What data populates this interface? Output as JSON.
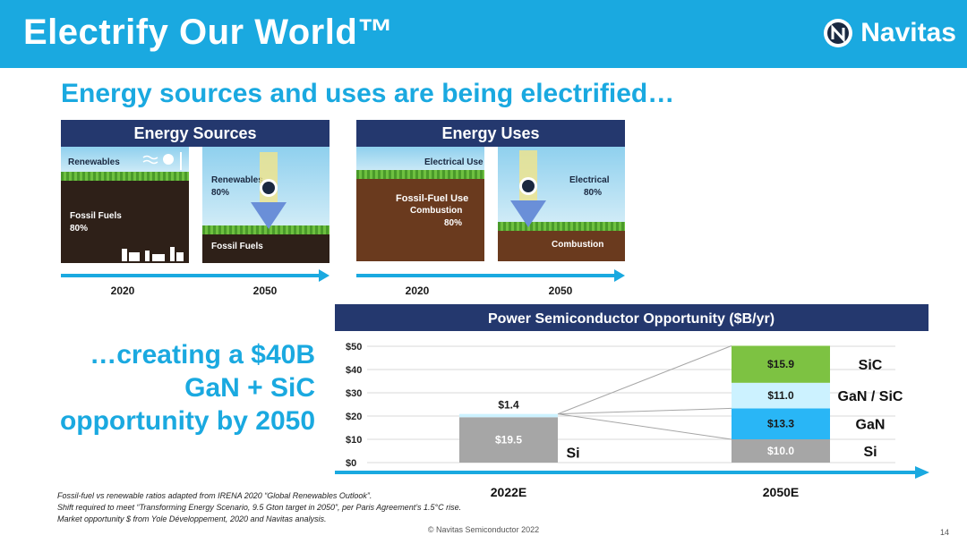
{
  "header": {
    "title": "Electrify Our World™",
    "brand": "Navitas"
  },
  "subtitle": "Energy sources and uses are being electrified…",
  "sources_panel": {
    "title": "Energy Sources",
    "left": {
      "renewables": "Renewables",
      "fossil": "Fossil Fuels",
      "fossil_pct": "80%"
    },
    "right": {
      "renewables": "Renewables",
      "renewables_pct": "80%",
      "fossil": "Fossil Fuels"
    },
    "years": [
      "2020",
      "2050"
    ]
  },
  "uses_panel": {
    "title": "Energy Uses",
    "left": {
      "electrical": "Electrical Use",
      "fossil_use": "Fossil-Fuel Use",
      "combustion": "Combustion",
      "combustion_pct": "80%"
    },
    "right": {
      "electrical": "Electrical",
      "electrical_pct": "80%",
      "combustion": "Combustion"
    },
    "years": [
      "2020",
      "2050"
    ]
  },
  "callout": [
    "…creating a $40B",
    "GaN + SiC",
    "opportunity by 2050"
  ],
  "colors": {
    "banner": "#1aa9e0",
    "navy": "#24386e",
    "si": "#a6a6a6",
    "gan": "#29b6f6",
    "gan_sic": "#ccf2ff",
    "sic": "#7dc242"
  },
  "chart_data": {
    "type": "bar",
    "stacked": true,
    "title": "Power Semiconductor Opportunity ($B/yr)",
    "categories": [
      "2022E",
      "2050E"
    ],
    "ylim": [
      0,
      50
    ],
    "y_ticks": [
      "$0",
      "$10",
      "$20",
      "$30",
      "$40",
      "$50"
    ],
    "grid": true,
    "series": [
      {
        "name": "Si",
        "values": [
          19.5,
          10.0
        ],
        "labels": [
          "$19.5",
          "$10.0"
        ],
        "color": "#a6a6a6"
      },
      {
        "name": "GaN",
        "values": [
          0,
          13.3
        ],
        "labels": [
          "",
          "$13.3"
        ],
        "color": "#29b6f6"
      },
      {
        "name": "GaN / SiC",
        "values": [
          1.4,
          11.0
        ],
        "labels": [
          "$1.4",
          "$11.0"
        ],
        "color": "#ccf2ff"
      },
      {
        "name": "SiC",
        "values": [
          0,
          15.9
        ],
        "labels": [
          "",
          "$15.9"
        ],
        "color": "#7dc242"
      }
    ]
  },
  "footnotes": [
    "Fossil-fuel vs renewable ratios adapted from IRENA 2020 “Global Renewables Outlook”.",
    "Shift required to meet “Transforming Energy Scenario, 9.5 Gton target in 2050”, per Paris Agreement’s 1.5°C rise.",
    "Market opportunity $ from Yole Développement, 2020 and Navitas analysis."
  ],
  "footer": "© Navitas Semiconductor 2022",
  "page_number": "14"
}
